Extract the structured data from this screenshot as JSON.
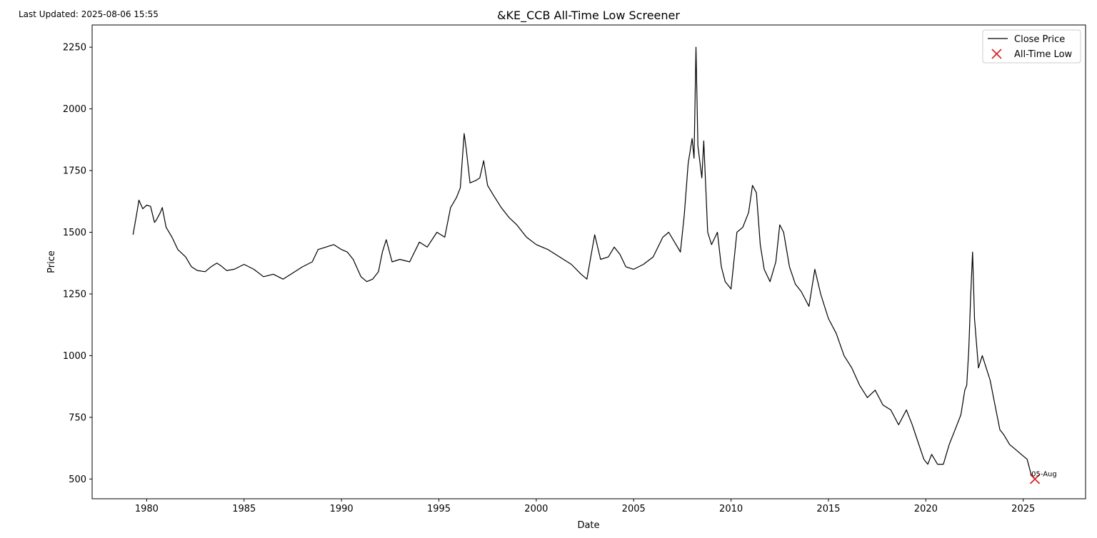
{
  "header": {
    "updated": "Last Updated: 2025-08-06 15:55"
  },
  "chart_data": {
    "type": "line",
    "title": "&KE_CCB All-Time Low Screener",
    "xlabel": "Date",
    "ylabel": "Price",
    "xlim": [
      1977.2,
      2028.2
    ],
    "ylim": [
      420,
      2340
    ],
    "x_ticks": [
      1980,
      1985,
      1990,
      1995,
      2000,
      2005,
      2010,
      2015,
      2020,
      2025
    ],
    "y_ticks": [
      500,
      750,
      1000,
      1250,
      1500,
      1750,
      2000,
      2250
    ],
    "grid": false,
    "legend_position": "top-right",
    "series": [
      {
        "name": "Close Price",
        "color": "#000000",
        "x": [
          1979.3,
          1979.5,
          1979.6,
          1979.8,
          1980.0,
          1980.2,
          1980.4,
          1980.5,
          1980.7,
          1980.8,
          1981.0,
          1981.3,
          1981.6,
          1982.0,
          1982.3,
          1982.6,
          1983.0,
          1983.3,
          1983.6,
          1983.8,
          1984.1,
          1984.5,
          1985.0,
          1985.5,
          1986.0,
          1986.5,
          1987.0,
          1987.5,
          1988.0,
          1988.5,
          1988.8,
          1989.2,
          1989.6,
          1990.0,
          1990.3,
          1990.6,
          1991.0,
          1991.3,
          1991.6,
          1991.9,
          1992.1,
          1992.3,
          1992.6,
          1993.0,
          1993.5,
          1994.0,
          1994.4,
          1994.9,
          1995.3,
          1995.6,
          1995.9,
          1996.1,
          1996.3,
          1996.4,
          1996.6,
          1996.9,
          1997.1,
          1997.3,
          1997.5,
          1997.8,
          1998.2,
          1998.6,
          1999.0,
          1999.5,
          2000.0,
          2000.6,
          2001.2,
          2001.8,
          2002.3,
          2002.6,
          2002.8,
          2003.0,
          2003.3,
          2003.7,
          2004.0,
          2004.3,
          2004.6,
          2005.0,
          2005.5,
          2006.0,
          2006.5,
          2006.8,
          2007.1,
          2007.4,
          2007.6,
          2007.8,
          2008.0,
          2008.1,
          2008.2,
          2008.3,
          2008.5,
          2008.6,
          2008.8,
          2009.0,
          2009.3,
          2009.5,
          2009.7,
          2010.0,
          2010.3,
          2010.6,
          2010.9,
          2011.1,
          2011.3,
          2011.5,
          2011.7,
          2012.0,
          2012.3,
          2012.5,
          2012.7,
          2013.0,
          2013.3,
          2013.6,
          2014.0,
          2014.3,
          2014.6,
          2014.8,
          2015.0,
          2015.4,
          2015.8,
          2016.2,
          2016.6,
          2017.0,
          2017.4,
          2017.8,
          2018.2,
          2018.6,
          2019.0,
          2019.3,
          2019.6,
          2019.9,
          2020.1,
          2020.3,
          2020.6,
          2020.9,
          2021.2,
          2021.5,
          2021.8,
          2022.0,
          2022.1,
          2022.2,
          2022.3,
          2022.4,
          2022.5,
          2022.7,
          2022.9,
          2023.1,
          2023.3,
          2023.5,
          2023.8,
          2024.0,
          2024.3,
          2024.6,
          2024.9,
          2025.2,
          2025.4,
          2025.6
        ],
        "y": [
          1490,
          1580,
          1630,
          1595,
          1610,
          1605,
          1540,
          1550,
          1580,
          1600,
          1520,
          1480,
          1430,
          1400,
          1360,
          1345,
          1340,
          1360,
          1375,
          1365,
          1345,
          1350,
          1370,
          1350,
          1320,
          1330,
          1310,
          1335,
          1360,
          1380,
          1430,
          1440,
          1450,
          1430,
          1420,
          1390,
          1320,
          1300,
          1310,
          1340,
          1420,
          1470,
          1380,
          1390,
          1380,
          1460,
          1440,
          1500,
          1480,
          1600,
          1640,
          1680,
          1900,
          1840,
          1700,
          1710,
          1720,
          1790,
          1690,
          1650,
          1600,
          1560,
          1530,
          1480,
          1450,
          1430,
          1400,
          1370,
          1330,
          1310,
          1400,
          1490,
          1390,
          1400,
          1440,
          1410,
          1360,
          1350,
          1370,
          1400,
          1480,
          1500,
          1460,
          1420,
          1570,
          1780,
          1880,
          1800,
          2250,
          1850,
          1720,
          1870,
          1500,
          1450,
          1500,
          1360,
          1300,
          1270,
          1500,
          1520,
          1580,
          1690,
          1660,
          1450,
          1350,
          1300,
          1380,
          1530,
          1500,
          1360,
          1290,
          1260,
          1200,
          1350,
          1250,
          1200,
          1150,
          1090,
          1000,
          950,
          880,
          830,
          860,
          800,
          780,
          720,
          780,
          720,
          650,
          580,
          560,
          600,
          560,
          560,
          640,
          700,
          760,
          860,
          880,
          1020,
          1240,
          1420,
          1150,
          950,
          1000,
          950,
          900,
          820,
          700,
          680,
          640,
          620,
          600,
          580,
          520,
          500
        ]
      },
      {
        "name": "All-Time Low",
        "color": "#d62728",
        "marker": "x",
        "x": [
          2025.6
        ],
        "y": [
          500
        ],
        "label": "05-Aug"
      }
    ]
  }
}
